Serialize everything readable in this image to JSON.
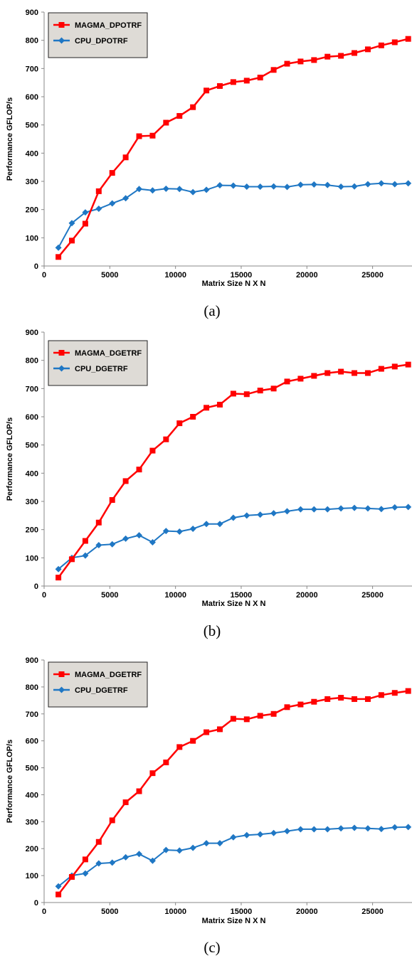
{
  "chart_data": [
    {
      "type": "line",
      "caption": "(a)",
      "xlabel": "Matrix Size N X N",
      "ylabel": "Performance GFLOP/s",
      "xlim": [
        0,
        28000
      ],
      "ylim": [
        0,
        900
      ],
      "xticks": [
        0,
        5000,
        10000,
        15000,
        20000,
        25000
      ],
      "yticks": [
        0,
        100,
        200,
        300,
        400,
        500,
        600,
        700,
        800,
        900
      ],
      "grid": false,
      "legend_position": "top-left",
      "x": [
        1088,
        2112,
        3136,
        4160,
        5184,
        6208,
        7232,
        8256,
        9280,
        10304,
        11328,
        12352,
        13376,
        14400,
        15424,
        16448,
        17472,
        18496,
        19520,
        20544,
        21568,
        22592,
        23616,
        24640,
        25664,
        26688,
        27712
      ],
      "series": [
        {
          "name": "MAGMA_DPOTRF",
          "color": "#ff0000",
          "marker": "square",
          "values": [
            32,
            90,
            150,
            265,
            330,
            385,
            460,
            462,
            508,
            532,
            563,
            622,
            638,
            652,
            657,
            668,
            695,
            717,
            725,
            730,
            742,
            745,
            755,
            768,
            782,
            793,
            805
          ]
        },
        {
          "name": "CPU_DPOTRF",
          "color": "#1f77c4",
          "marker": "diamond",
          "values": [
            65,
            152,
            190,
            203,
            222,
            240,
            273,
            268,
            274,
            273,
            262,
            270,
            286,
            285,
            281,
            281,
            282,
            280,
            288,
            289,
            287,
            281,
            282,
            290,
            293,
            290,
            293
          ]
        }
      ]
    },
    {
      "type": "line",
      "caption": "(b)",
      "xlabel": "Matrix Size N X N",
      "ylabel": "Performance GFLOP/s",
      "xlim": [
        0,
        28000
      ],
      "ylim": [
        0,
        900
      ],
      "xticks": [
        0,
        5000,
        10000,
        15000,
        20000,
        25000
      ],
      "yticks": [
        0,
        100,
        200,
        300,
        400,
        500,
        600,
        700,
        800,
        900
      ],
      "grid": false,
      "legend_position": "top-left",
      "x": [
        1088,
        2112,
        3136,
        4160,
        5184,
        6208,
        7232,
        8256,
        9280,
        10304,
        11328,
        12352,
        13376,
        14400,
        15424,
        16448,
        17472,
        18496,
        19520,
        20544,
        21568,
        22592,
        23616,
        24640,
        25664,
        26688,
        27712
      ],
      "series": [
        {
          "name": "MAGMA_DGETRF",
          "color": "#ff0000",
          "marker": "square",
          "values": [
            30,
            95,
            160,
            225,
            305,
            372,
            413,
            480,
            520,
            577,
            600,
            632,
            643,
            682,
            680,
            693,
            700,
            725,
            735,
            745,
            755,
            760,
            755,
            755,
            770,
            778,
            785
          ]
        },
        {
          "name": "CPU_DGETRF",
          "color": "#1f77c4",
          "marker": "diamond",
          "values": [
            60,
            100,
            108,
            145,
            148,
            168,
            180,
            155,
            195,
            193,
            203,
            220,
            220,
            242,
            250,
            253,
            258,
            265,
            272,
            272,
            272,
            275,
            277,
            275,
            273,
            279,
            280
          ]
        }
      ]
    },
    {
      "type": "line",
      "caption": "(c)",
      "xlabel": "Matrix Size N X N",
      "ylabel": "Performance GFLOP/s",
      "xlim": [
        0,
        28000
      ],
      "ylim": [
        0,
        900
      ],
      "xticks": [
        0,
        5000,
        10000,
        15000,
        20000,
        25000
      ],
      "yticks": [
        0,
        100,
        200,
        300,
        400,
        500,
        600,
        700,
        800,
        900
      ],
      "grid": false,
      "legend_position": "top-left",
      "x": [
        1088,
        2112,
        3136,
        4160,
        5184,
        6208,
        7232,
        8256,
        9280,
        10304,
        11328,
        12352,
        13376,
        14400,
        15424,
        16448,
        17472,
        18496,
        19520,
        20544,
        21568,
        22592,
        23616,
        24640,
        25664,
        26688,
        27712
      ],
      "series": [
        {
          "name": "MAGMA_DGETRF",
          "color": "#ff0000",
          "marker": "square",
          "values": [
            30,
            95,
            160,
            225,
            305,
            372,
            413,
            480,
            520,
            577,
            600,
            632,
            643,
            682,
            680,
            693,
            700,
            725,
            735,
            745,
            755,
            760,
            755,
            755,
            770,
            778,
            785
          ]
        },
        {
          "name": "CPU_DGETRF",
          "color": "#1f77c4",
          "marker": "diamond",
          "values": [
            60,
            100,
            108,
            145,
            148,
            168,
            180,
            155,
            195,
            193,
            203,
            220,
            220,
            242,
            250,
            253,
            258,
            265,
            272,
            272,
            272,
            275,
            277,
            275,
            273,
            279,
            280
          ]
        }
      ]
    }
  ]
}
